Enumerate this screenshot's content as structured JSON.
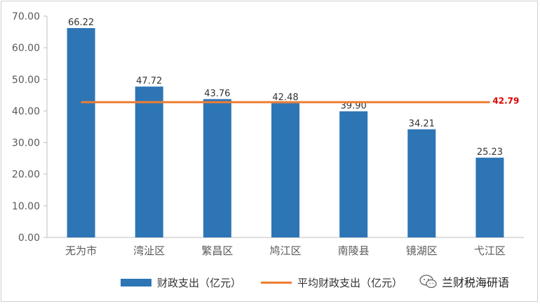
{
  "chart_data": {
    "type": "bar",
    "categories": [
      "无为市",
      "湾沚区",
      "繁昌区",
      "鸠江区",
      "南陵县",
      "镜湖区",
      "弋江区"
    ],
    "series": [
      {
        "name": "财政支出（亿元）",
        "type": "bar",
        "color": "#2e75b6",
        "values": [
          66.22,
          47.72,
          43.76,
          42.48,
          39.9,
          34.21,
          25.23
        ],
        "labels": [
          "66.22",
          "47.72",
          "43.76",
          "42.48",
          "39.90",
          "34.21",
          "25.23"
        ]
      },
      {
        "name": "平均财政支出（亿元）",
        "type": "line",
        "color": "#ed7d31",
        "value": 42.79,
        "label": "42.79",
        "label_color": "#e00000"
      }
    ],
    "y_ticks": [
      "0.00",
      "10.00",
      "20.00",
      "30.00",
      "40.00",
      "50.00",
      "60.00",
      "70.00"
    ],
    "ylim": [
      0,
      70
    ],
    "grid": false,
    "legend_position": "bottom"
  },
  "watermark": {
    "text": "兰财税海研语",
    "icon": "wechat-icon"
  }
}
